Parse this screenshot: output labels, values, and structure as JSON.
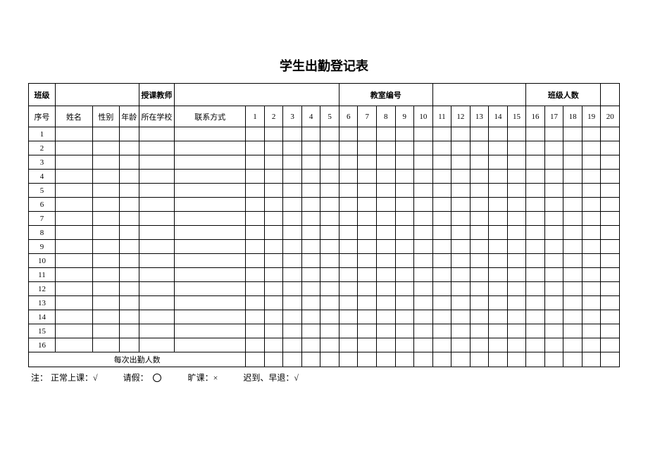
{
  "title": "学生出勤登记表",
  "header_row1": {
    "class_label": "班级",
    "teacher_label": "授课教师",
    "classroom_label": "教室编号",
    "classsize_label": "班级人数"
  },
  "header_row2": {
    "seq": "序号",
    "name": "姓名",
    "gender": "性别",
    "age": "年龄",
    "school": "所在学校",
    "contact": "联系方式",
    "days": [
      "1",
      "2",
      "3",
      "4",
      "5",
      "6",
      "7",
      "8",
      "9",
      "10",
      "11",
      "12",
      "13",
      "14",
      "15",
      "16",
      "17",
      "18",
      "19",
      "20"
    ]
  },
  "rows": [
    {
      "seq": "1"
    },
    {
      "seq": "2"
    },
    {
      "seq": "3"
    },
    {
      "seq": "4"
    },
    {
      "seq": "5"
    },
    {
      "seq": "6"
    },
    {
      "seq": "7"
    },
    {
      "seq": "8"
    },
    {
      "seq": "9"
    },
    {
      "seq": "10"
    },
    {
      "seq": "11"
    },
    {
      "seq": "12"
    },
    {
      "seq": "13"
    },
    {
      "seq": "14"
    },
    {
      "seq": "15"
    },
    {
      "seq": "16"
    }
  ],
  "summary_label": "每次出勤人数",
  "footer": {
    "prefix": "注：",
    "normal": "正常上课：√",
    "leave": "请假：",
    "absent": "旷课：×",
    "late": "迟到、早退：√"
  },
  "colors": {
    "border": "#000000",
    "background": "#ffffff",
    "text": "#000000"
  }
}
